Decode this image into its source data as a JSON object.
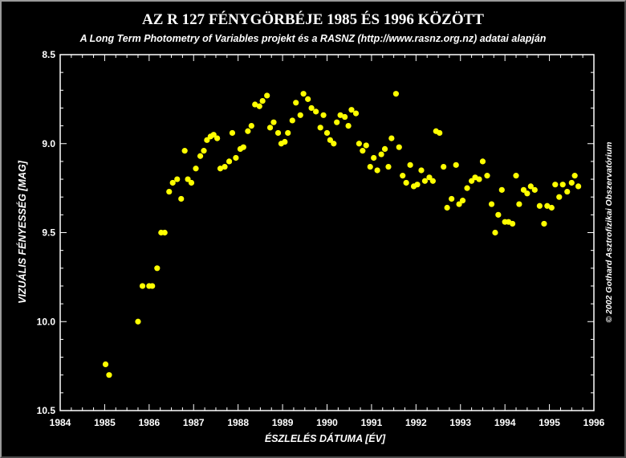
{
  "chart_data": {
    "type": "scatter",
    "title": "AZ R 127 FÉNYGÖRBÉJE 1985 ÉS 1996 KÖZÖTT",
    "subtitle": "A Long Term Photometry of Variables projekt és a RASNZ (http://www.rasnz.org.nz) adatai alapján",
    "xlabel": "ÉSZLELÉS DÁTUMA [ÉV]",
    "ylabel": "VIZUÁLIS FÉNYESSÉG [MAG]",
    "credit": "© 2002 Gothard Asztrofizikai Obszervatórium",
    "xlim": [
      1984,
      1996
    ],
    "ylim": [
      10.5,
      8.5
    ],
    "y_inverted": true,
    "x_ticks": [
      "1984",
      "1985",
      "1986",
      "1987",
      "1988",
      "1989",
      "1990",
      "1991",
      "1992",
      "1993",
      "1994",
      "1995",
      "1996"
    ],
    "y_ticks": [
      "8.5",
      "9.0",
      "9.5",
      "10.0",
      "10.5"
    ],
    "marker_color": "#ffff00",
    "points": [
      [
        1985.02,
        10.24
      ],
      [
        1985.1,
        10.3
      ],
      [
        1985.75,
        10.0
      ],
      [
        1985.85,
        9.8
      ],
      [
        1986.0,
        9.8
      ],
      [
        1986.07,
        9.8
      ],
      [
        1986.18,
        9.7
      ],
      [
        1986.27,
        9.5
      ],
      [
        1986.35,
        9.5
      ],
      [
        1986.45,
        9.27
      ],
      [
        1986.53,
        9.22
      ],
      [
        1986.63,
        9.2
      ],
      [
        1986.72,
        9.31
      ],
      [
        1986.8,
        9.04
      ],
      [
        1986.87,
        9.2
      ],
      [
        1986.95,
        9.22
      ],
      [
        1987.05,
        9.14
      ],
      [
        1987.15,
        9.07
      ],
      [
        1987.23,
        9.04
      ],
      [
        1987.3,
        8.98
      ],
      [
        1987.38,
        8.96
      ],
      [
        1987.45,
        8.95
      ],
      [
        1987.53,
        8.97
      ],
      [
        1987.6,
        9.14
      ],
      [
        1987.7,
        9.13
      ],
      [
        1987.8,
        9.1
      ],
      [
        1987.87,
        8.94
      ],
      [
        1987.95,
        9.08
      ],
      [
        1988.05,
        9.03
      ],
      [
        1988.12,
        9.02
      ],
      [
        1988.22,
        8.93
      ],
      [
        1988.3,
        8.9
      ],
      [
        1988.38,
        8.78
      ],
      [
        1988.48,
        8.79
      ],
      [
        1988.55,
        8.76
      ],
      [
        1988.65,
        8.73
      ],
      [
        1988.72,
        8.91
      ],
      [
        1988.8,
        8.88
      ],
      [
        1988.9,
        8.94
      ],
      [
        1988.97,
        9.0
      ],
      [
        1989.05,
        8.99
      ],
      [
        1989.12,
        8.94
      ],
      [
        1989.22,
        8.87
      ],
      [
        1989.3,
        8.77
      ],
      [
        1989.4,
        8.84
      ],
      [
        1989.47,
        8.72
      ],
      [
        1989.57,
        8.75
      ],
      [
        1989.65,
        8.8
      ],
      [
        1989.75,
        8.82
      ],
      [
        1989.85,
        8.91
      ],
      [
        1989.92,
        8.84
      ],
      [
        1990.0,
        8.94
      ],
      [
        1990.07,
        8.98
      ],
      [
        1990.15,
        9.0
      ],
      [
        1990.22,
        8.88
      ],
      [
        1990.3,
        8.84
      ],
      [
        1990.4,
        8.85
      ],
      [
        1990.48,
        8.9
      ],
      [
        1990.55,
        8.81
      ],
      [
        1990.65,
        8.83
      ],
      [
        1990.72,
        9.0
      ],
      [
        1990.8,
        9.04
      ],
      [
        1990.88,
        9.01
      ],
      [
        1990.97,
        9.13
      ],
      [
        1991.05,
        9.08
      ],
      [
        1991.13,
        9.15
      ],
      [
        1991.22,
        9.06
      ],
      [
        1991.3,
        9.03
      ],
      [
        1991.38,
        9.13
      ],
      [
        1991.45,
        8.97
      ],
      [
        1991.55,
        8.72
      ],
      [
        1991.62,
        9.02
      ],
      [
        1991.7,
        9.18
      ],
      [
        1991.78,
        9.22
      ],
      [
        1991.87,
        9.12
      ],
      [
        1991.95,
        9.24
      ],
      [
        1992.03,
        9.23
      ],
      [
        1992.12,
        9.15
      ],
      [
        1992.2,
        9.21
      ],
      [
        1992.3,
        9.19
      ],
      [
        1992.38,
        9.21
      ],
      [
        1992.45,
        8.93
      ],
      [
        1992.53,
        8.94
      ],
      [
        1992.62,
        9.13
      ],
      [
        1992.7,
        9.36
      ],
      [
        1992.8,
        9.31
      ],
      [
        1992.9,
        9.12
      ],
      [
        1992.97,
        9.34
      ],
      [
        1993.05,
        9.32
      ],
      [
        1993.15,
        9.25
      ],
      [
        1993.25,
        9.21
      ],
      [
        1993.33,
        9.19
      ],
      [
        1993.42,
        9.2
      ],
      [
        1993.5,
        9.1
      ],
      [
        1993.6,
        9.18
      ],
      [
        1993.7,
        9.34
      ],
      [
        1993.78,
        9.5
      ],
      [
        1993.85,
        9.4
      ],
      [
        1993.93,
        9.26
      ],
      [
        1994.0,
        9.44
      ],
      [
        1994.08,
        9.44
      ],
      [
        1994.17,
        9.45
      ],
      [
        1994.25,
        9.18
      ],
      [
        1994.32,
        9.34
      ],
      [
        1994.42,
        9.26
      ],
      [
        1994.5,
        9.28
      ],
      [
        1994.58,
        9.24
      ],
      [
        1994.67,
        9.26
      ],
      [
        1994.78,
        9.35
      ],
      [
        1994.88,
        9.45
      ],
      [
        1994.95,
        9.35
      ],
      [
        1995.05,
        9.36
      ],
      [
        1995.13,
        9.23
      ],
      [
        1995.22,
        9.3
      ],
      [
        1995.3,
        9.23
      ],
      [
        1995.4,
        9.27
      ],
      [
        1995.5,
        9.22
      ],
      [
        1995.57,
        9.18
      ],
      [
        1995.65,
        9.24
      ]
    ]
  }
}
